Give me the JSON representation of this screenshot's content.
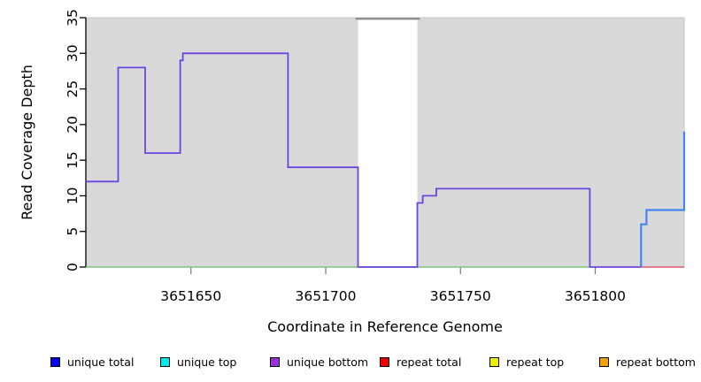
{
  "chart": {
    "xlabel": "Coordinate in Reference Genome",
    "ylabel": "Read Coverage Depth"
  },
  "chart_data": {
    "type": "line",
    "style": "step",
    "title": "",
    "xlabel": "Coordinate in Reference Genome",
    "ylabel": "Read Coverage Depth",
    "xlim": [
      3651611,
      3651833
    ],
    "ylim": [
      0,
      35
    ],
    "x_ticks": [
      3651650,
      3651700,
      3651750,
      3651800
    ],
    "y_ticks": [
      0,
      5,
      10,
      15,
      20,
      25,
      30,
      35
    ],
    "grid": false,
    "plot_background": "#d9d9d9",
    "panel_border_color": "#c4c4c4",
    "gap_band": {
      "x_start": 3651712,
      "x_end": 3651734,
      "fill": "#ffffff",
      "top_edge_color": "#8f8f8f"
    },
    "series": [
      {
        "name": "baseline-green",
        "color": "#7cc87c",
        "width": 1.4,
        "step_points": [
          [
            3651611,
            0
          ],
          [
            3651798,
            0
          ]
        ]
      },
      {
        "name": "repeat total",
        "color": "#e05570",
        "width": 1.4,
        "step_points": [
          [
            3651817,
            0
          ],
          [
            3651833,
            0
          ]
        ]
      },
      {
        "name": "unique bottom",
        "color": "#6a45e0",
        "width": 1.8,
        "step_points": [
          [
            3651611,
            12
          ],
          [
            3651623,
            28
          ],
          [
            3651633,
            16
          ],
          [
            3651646,
            29
          ],
          [
            3651647,
            30
          ],
          [
            3651686,
            14
          ],
          [
            3651712,
            0
          ],
          [
            3651734,
            9
          ],
          [
            3651736,
            10
          ],
          [
            3651741,
            11
          ],
          [
            3651798,
            0
          ],
          [
            3651817,
            0
          ]
        ]
      },
      {
        "name": "unique total",
        "color": "#4483f0",
        "width": 2.2,
        "step_points": [
          [
            3651817,
            0
          ],
          [
            3651817,
            6
          ],
          [
            3651819,
            8
          ],
          [
            3651833,
            19
          ]
        ]
      }
    ],
    "legend_position": "bottom"
  },
  "legend": {
    "items": [
      {
        "label": "unique total",
        "color": "#0000ee"
      },
      {
        "label": "unique top",
        "color": "#00e8e8"
      },
      {
        "label": "unique bottom",
        "color": "#9b30d6"
      },
      {
        "label": "repeat total",
        "color": "#ee0000"
      },
      {
        "label": "repeat top",
        "color": "#eeee00"
      },
      {
        "label": "repeat bottom",
        "color": "#f0a000"
      }
    ]
  }
}
